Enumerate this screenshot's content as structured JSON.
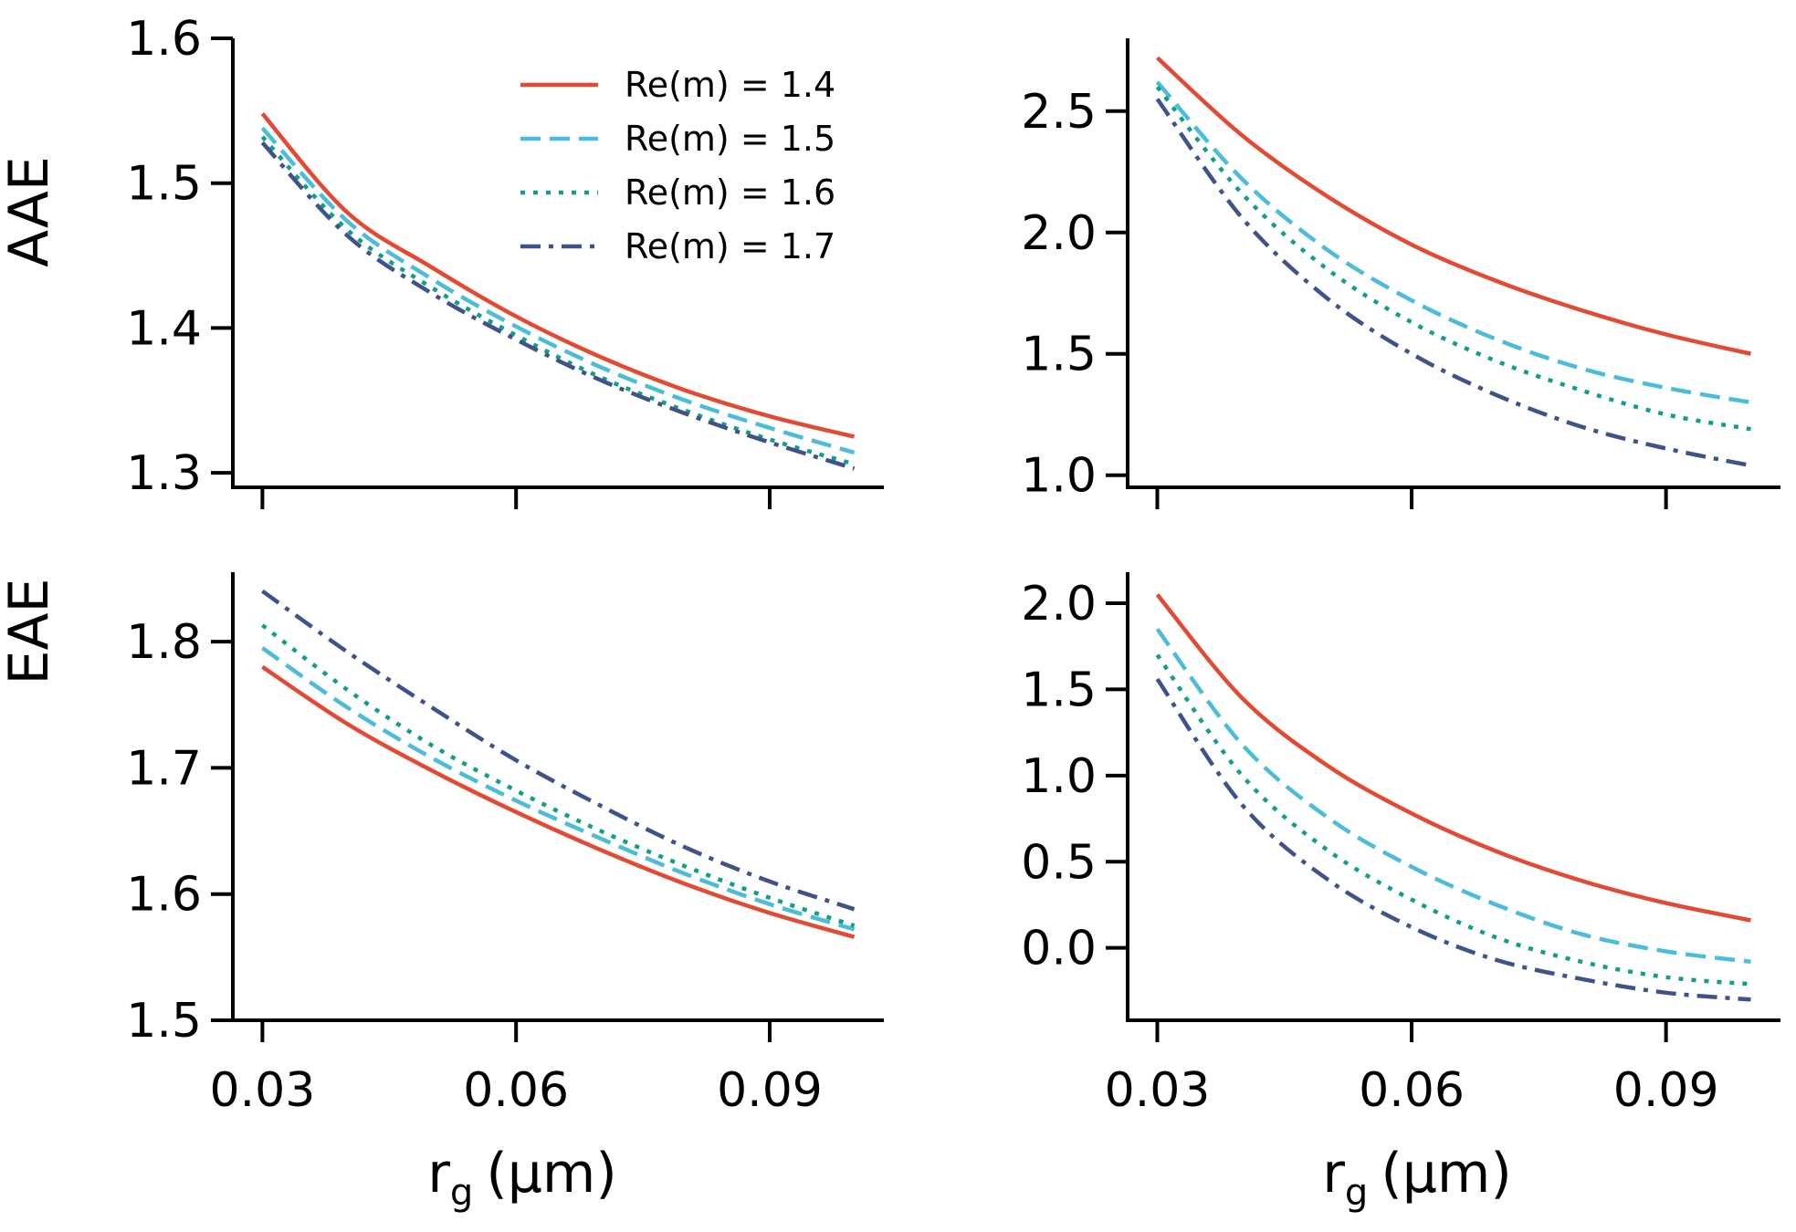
{
  "figure": {
    "legend": {
      "placement": "top-right of top-left panel",
      "entries": [
        {
          "label": "Re(m) = 1.4",
          "series": 0
        },
        {
          "label": "Re(m) = 1.5",
          "series": 1
        },
        {
          "label": "Re(m) = 1.6",
          "series": 2
        },
        {
          "label": "Re(m) = 1.7",
          "series": 3
        }
      ]
    },
    "series_styles": [
      {
        "name": "Re(m) = 1.4",
        "color": "#e34a33",
        "dash": "solid"
      },
      {
        "name": "Re(m) = 1.5",
        "color": "#4bbcd9",
        "dash": "dashed"
      },
      {
        "name": "Re(m) = 1.6",
        "color": "#119f8a",
        "dash": "dotted"
      },
      {
        "name": "Re(m) = 1.7",
        "color": "#3f5289",
        "dash": "dashdot"
      }
    ],
    "rows": [
      {
        "ylabel": "AAE"
      },
      {
        "ylabel": "EAE"
      }
    ],
    "columns": [
      {
        "xlabel_main": "r",
        "xlabel_sub": "g",
        "xlabel_unit": "(μm)"
      },
      {
        "xlabel_main": "r",
        "xlabel_sub": "g",
        "xlabel_unit": "(μm)"
      }
    ]
  },
  "chart_data": [
    {
      "id": "aae-left",
      "type": "line",
      "title": "",
      "xlabel": "",
      "ylabel": "AAE",
      "xlim": [
        0.0265,
        0.1035
      ],
      "ylim": [
        1.29,
        1.6
      ],
      "xticks": [
        0.03,
        0.06,
        0.09
      ],
      "xtick_labels": [],
      "yticks": [
        1.3,
        1.4,
        1.5,
        1.6
      ],
      "ytick_labels": [
        "1.3",
        "1.4",
        "1.5",
        "1.6"
      ],
      "x": [
        0.03,
        0.04,
        0.05,
        0.06,
        0.07,
        0.08,
        0.09,
        0.1
      ],
      "series": [
        {
          "name": "Re(m) = 1.4",
          "values": [
            1.548,
            1.48,
            1.442,
            1.408,
            1.38,
            1.357,
            1.339,
            1.325
          ]
        },
        {
          "name": "Re(m) = 1.5",
          "values": [
            1.538,
            1.474,
            1.434,
            1.401,
            1.373,
            1.35,
            1.331,
            1.314
          ]
        },
        {
          "name": "Re(m) = 1.6",
          "values": [
            1.532,
            1.468,
            1.428,
            1.395,
            1.366,
            1.343,
            1.323,
            1.306
          ]
        },
        {
          "name": "Re(m) = 1.7",
          "values": [
            1.528,
            1.464,
            1.424,
            1.392,
            1.364,
            1.341,
            1.321,
            1.303
          ]
        }
      ]
    },
    {
      "id": "aae-right",
      "type": "line",
      "title": "",
      "xlabel": "",
      "ylabel": "",
      "xlim": [
        0.0265,
        0.1035
      ],
      "ylim": [
        0.95,
        2.8
      ],
      "xticks": [
        0.03,
        0.06,
        0.09
      ],
      "xtick_labels": [],
      "yticks": [
        1.0,
        1.5,
        2.0,
        2.5
      ],
      "ytick_labels": [
        "1.0",
        "1.5",
        "2.0",
        "2.5"
      ],
      "x": [
        0.03,
        0.04,
        0.05,
        0.06,
        0.07,
        0.08,
        0.09,
        0.1
      ],
      "series": [
        {
          "name": "Re(m) = 1.4",
          "values": [
            2.72,
            2.4,
            2.15,
            1.95,
            1.8,
            1.68,
            1.58,
            1.5
          ]
        },
        {
          "name": "Re(m) = 1.5",
          "values": [
            2.62,
            2.22,
            1.93,
            1.72,
            1.56,
            1.44,
            1.36,
            1.3
          ]
        },
        {
          "name": "Re(m) = 1.6",
          "values": [
            2.6,
            2.16,
            1.85,
            1.63,
            1.47,
            1.35,
            1.25,
            1.19
          ]
        },
        {
          "name": "Re(m) = 1.7",
          "values": [
            2.55,
            2.06,
            1.73,
            1.5,
            1.33,
            1.2,
            1.11,
            1.04
          ]
        }
      ]
    },
    {
      "id": "eae-left",
      "type": "line",
      "title": "",
      "xlabel": "r_g (μm)",
      "ylabel": "EAE",
      "xlim": [
        0.0265,
        0.1035
      ],
      "ylim": [
        1.5,
        1.855
      ],
      "xticks": [
        0.03,
        0.06,
        0.09
      ],
      "xtick_labels": [
        "0.03",
        "0.06",
        "0.09"
      ],
      "yticks": [
        1.5,
        1.6,
        1.7,
        1.8
      ],
      "ytick_labels": [
        "1.5",
        "1.6",
        "1.7",
        "1.8"
      ],
      "x": [
        0.03,
        0.04,
        0.05,
        0.06,
        0.07,
        0.08,
        0.09,
        0.1
      ],
      "series": [
        {
          "name": "Re(m) = 1.4",
          "values": [
            1.78,
            1.735,
            1.698,
            1.665,
            1.635,
            1.608,
            1.585,
            1.566
          ]
        },
        {
          "name": "Re(m) = 1.5",
          "values": [
            1.795,
            1.748,
            1.708,
            1.674,
            1.644,
            1.616,
            1.592,
            1.572
          ]
        },
        {
          "name": "Re(m) = 1.6",
          "values": [
            1.813,
            1.762,
            1.718,
            1.682,
            1.65,
            1.622,
            1.597,
            1.575
          ]
        },
        {
          "name": "Re(m) = 1.7",
          "values": [
            1.84,
            1.792,
            1.748,
            1.706,
            1.67,
            1.637,
            1.61,
            1.588
          ]
        }
      ]
    },
    {
      "id": "eae-right",
      "type": "line",
      "title": "",
      "xlabel": "r_g (μm)",
      "ylabel": "",
      "xlim": [
        0.0265,
        0.1035
      ],
      "ylim": [
        -0.42,
        2.18
      ],
      "xticks": [
        0.03,
        0.06,
        0.09
      ],
      "xtick_labels": [
        "0.03",
        "0.06",
        "0.09"
      ],
      "yticks": [
        0.0,
        0.5,
        1.0,
        1.5,
        2.0
      ],
      "ytick_labels": [
        "0.0",
        "0.5",
        "1.0",
        "1.5",
        "2.0"
      ],
      "x": [
        0.03,
        0.04,
        0.05,
        0.06,
        0.07,
        0.08,
        0.09,
        0.1
      ],
      "series": [
        {
          "name": "Re(m) = 1.4",
          "values": [
            2.05,
            1.45,
            1.06,
            0.78,
            0.56,
            0.39,
            0.26,
            0.16
          ]
        },
        {
          "name": "Re(m) = 1.5",
          "values": [
            1.85,
            1.18,
            0.76,
            0.47,
            0.25,
            0.08,
            -0.02,
            -0.08
          ]
        },
        {
          "name": "Re(m) = 1.6",
          "values": [
            1.7,
            1.0,
            0.57,
            0.28,
            0.06,
            -0.08,
            -0.17,
            -0.21
          ]
        },
        {
          "name": "Re(m) = 1.7",
          "values": [
            1.56,
            0.83,
            0.4,
            0.12,
            -0.07,
            -0.18,
            -0.26,
            -0.3
          ]
        }
      ]
    }
  ]
}
